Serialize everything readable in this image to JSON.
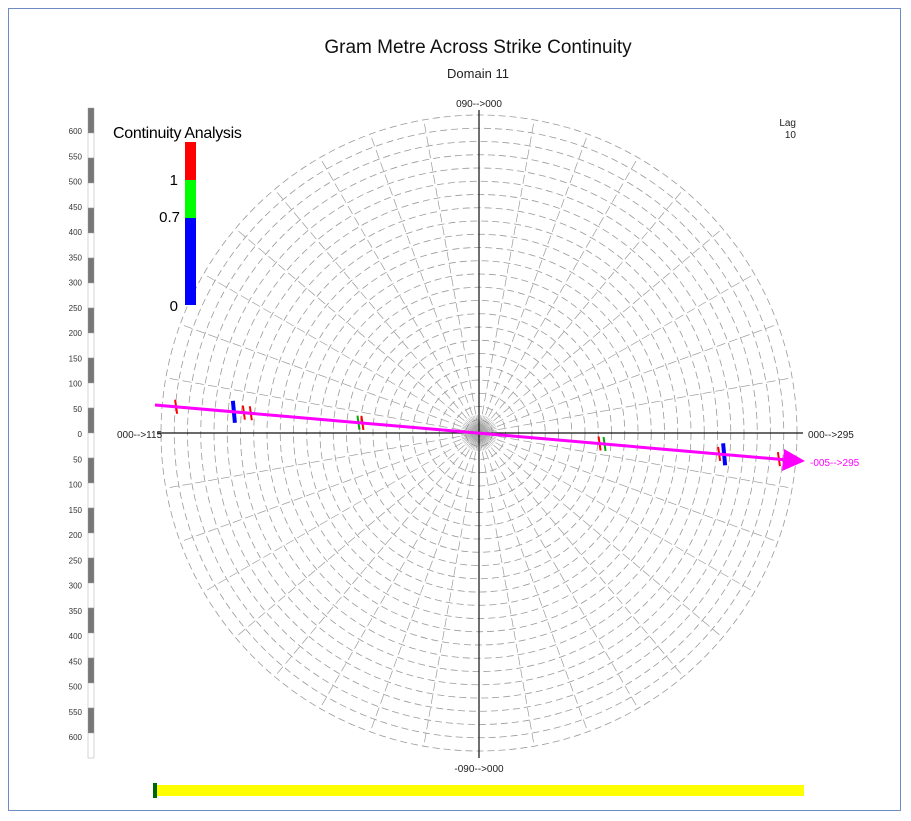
{
  "chart_data": {
    "type": "polar-variogram-map",
    "title": "Gram Metre Across Strike Continuity",
    "subtitle": "Domain 11",
    "lag_label": "Lag",
    "lag_value": "10",
    "axis_labels": {
      "top": "090-->000",
      "bottom": "-090-->000",
      "left": "000-->115",
      "right": "000-->295"
    },
    "direction_arrow": {
      "label": "-005-->295",
      "color": "#ff00ff"
    },
    "legend": {
      "title": "Continuity Analysis",
      "labels": [
        "1",
        "0.7",
        "0"
      ],
      "bands": [
        {
          "from": 1.0,
          "to": 1.2,
          "color": "#ff0000"
        },
        {
          "from": 0.7,
          "to": 1.0,
          "color": "#00ff00"
        },
        {
          "from": 0.0,
          "to": 0.7,
          "color": "#0000ff"
        }
      ]
    },
    "scale_ticks": [
      "600",
      "550",
      "500",
      "450",
      "400",
      "350",
      "300",
      "250",
      "200",
      "150",
      "100",
      "50",
      "0",
      "50",
      "100",
      "150",
      "200",
      "250",
      "300",
      "350",
      "400",
      "450",
      "500",
      "550",
      "600"
    ],
    "range_max": 600,
    "ring_count": 24,
    "ray_count": 36,
    "colors": {
      "grid": "#9a9a9a",
      "axis": "#111111",
      "arrow": "#ff00ff",
      "slider_track": "#ffff00",
      "slider_handle": "#006600",
      "frame": "#6d8cc4"
    },
    "markers": [
      {
        "r": 305,
        "side": "left",
        "color": "#ff0000"
      },
      {
        "r": 247,
        "side": "left",
        "color": "#0000ff"
      },
      {
        "r": 237,
        "side": "left",
        "color": "#ff0000"
      },
      {
        "r": 230,
        "side": "left",
        "color": "#ff0000"
      },
      {
        "r": 122,
        "side": "left",
        "color": "#00aa00"
      },
      {
        "r": 118,
        "side": "left",
        "color": "#ff0000"
      },
      {
        "r": 120,
        "side": "right",
        "color": "#ff0000"
      },
      {
        "r": 125,
        "side": "right",
        "color": "#00aa00"
      },
      {
        "r": 240,
        "side": "right",
        "color": "#ff0000"
      },
      {
        "r": 245,
        "side": "right",
        "color": "#0000ff"
      },
      {
        "r": 300,
        "side": "right",
        "color": "#ff0000"
      }
    ]
  },
  "slider": {
    "position": 0.0
  }
}
